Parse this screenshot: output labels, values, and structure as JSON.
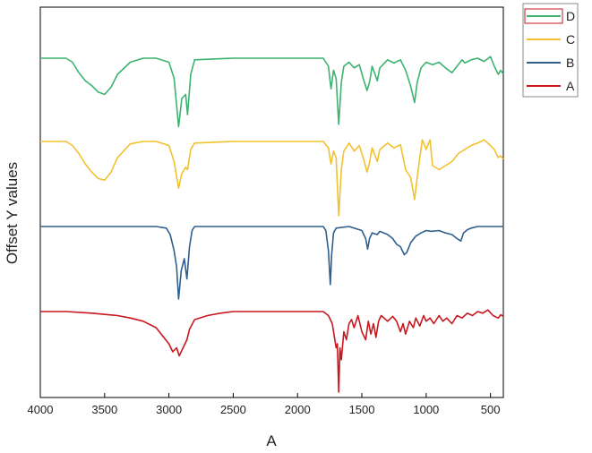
{
  "chart_data": {
    "type": "line",
    "title": "",
    "xlabel": "A",
    "ylabel": "Offset Y values",
    "xlim": [
      4000,
      400
    ],
    "x_reversed": true,
    "xticks": [
      4000,
      3500,
      3000,
      2500,
      2000,
      1500,
      1000,
      500
    ],
    "y_ticks_shown": false,
    "grid": false,
    "legend": {
      "placement": "top-right-outside",
      "entries": [
        "D",
        "C",
        "B",
        "A"
      ]
    },
    "series": [
      {
        "name": "D",
        "color": "#3cb371",
        "offset": 3,
        "points": [
          [
            4000,
            0
          ],
          [
            3800,
            0
          ],
          [
            3750,
            -0.05
          ],
          [
            3700,
            -0.18
          ],
          [
            3650,
            -0.28
          ],
          [
            3600,
            -0.34
          ],
          [
            3550,
            -0.42
          ],
          [
            3500,
            -0.45
          ],
          [
            3450,
            -0.36
          ],
          [
            3400,
            -0.2
          ],
          [
            3300,
            -0.05
          ],
          [
            3200,
            0
          ],
          [
            3100,
            0
          ],
          [
            3000,
            -0.05
          ],
          [
            2960,
            -0.25
          ],
          [
            2925,
            -0.85
          ],
          [
            2900,
            -0.5
          ],
          [
            2870,
            -0.45
          ],
          [
            2855,
            -0.7
          ],
          [
            2830,
            -0.2
          ],
          [
            2800,
            -0.02
          ],
          [
            2500,
            0
          ],
          [
            2200,
            0
          ],
          [
            1800,
            0
          ],
          [
            1760,
            -0.1
          ],
          [
            1740,
            -0.38
          ],
          [
            1720,
            -0.15
          ],
          [
            1700,
            -0.25
          ],
          [
            1680,
            -0.82
          ],
          [
            1660,
            -0.3
          ],
          [
            1640,
            -0.1
          ],
          [
            1600,
            -0.05
          ],
          [
            1560,
            -0.12
          ],
          [
            1520,
            -0.08
          ],
          [
            1490,
            -0.25
          ],
          [
            1460,
            -0.4
          ],
          [
            1440,
            -0.3
          ],
          [
            1420,
            -0.1
          ],
          [
            1380,
            -0.28
          ],
          [
            1360,
            -0.12
          ],
          [
            1300,
            -0.02
          ],
          [
            1250,
            -0.06
          ],
          [
            1200,
            -0.02
          ],
          [
            1160,
            -0.15
          ],
          [
            1120,
            -0.35
          ],
          [
            1090,
            -0.55
          ],
          [
            1070,
            -0.3
          ],
          [
            1040,
            -0.12
          ],
          [
            1000,
            -0.05
          ],
          [
            950,
            -0.08
          ],
          [
            900,
            -0.05
          ],
          [
            850,
            -0.12
          ],
          [
            800,
            -0.18
          ],
          [
            760,
            -0.1
          ],
          [
            720,
            -0.02
          ],
          [
            700,
            -0.06
          ],
          [
            650,
            -0.02
          ],
          [
            600,
            0
          ],
          [
            550,
            -0.04
          ],
          [
            500,
            0.02
          ],
          [
            470,
            -0.1
          ],
          [
            440,
            -0.2
          ],
          [
            420,
            -0.15
          ],
          [
            400,
            -0.2
          ]
        ]
      },
      {
        "name": "C",
        "color": "#f2c12e",
        "offset": 2,
        "points": [
          [
            4000,
            0
          ],
          [
            3800,
            0
          ],
          [
            3750,
            -0.05
          ],
          [
            3700,
            -0.15
          ],
          [
            3650,
            -0.28
          ],
          [
            3600,
            -0.38
          ],
          [
            3550,
            -0.46
          ],
          [
            3500,
            -0.48
          ],
          [
            3450,
            -0.38
          ],
          [
            3400,
            -0.2
          ],
          [
            3300,
            -0.03
          ],
          [
            3200,
            0
          ],
          [
            3100,
            0
          ],
          [
            3000,
            -0.05
          ],
          [
            2960,
            -0.25
          ],
          [
            2925,
            -0.58
          ],
          [
            2900,
            -0.4
          ],
          [
            2870,
            -0.32
          ],
          [
            2855,
            -0.35
          ],
          [
            2830,
            -0.1
          ],
          [
            2800,
            -0.02
          ],
          [
            2500,
            0
          ],
          [
            2200,
            0
          ],
          [
            1800,
            0
          ],
          [
            1760,
            -0.08
          ],
          [
            1740,
            -0.28
          ],
          [
            1720,
            -0.12
          ],
          [
            1700,
            -0.2
          ],
          [
            1680,
            -0.92
          ],
          [
            1660,
            -0.35
          ],
          [
            1640,
            -0.12
          ],
          [
            1600,
            -0.02
          ],
          [
            1560,
            -0.12
          ],
          [
            1520,
            -0.05
          ],
          [
            1490,
            -0.2
          ],
          [
            1460,
            -0.38
          ],
          [
            1440,
            -0.26
          ],
          [
            1420,
            -0.08
          ],
          [
            1380,
            -0.25
          ],
          [
            1360,
            -0.1
          ],
          [
            1300,
            -0.02
          ],
          [
            1250,
            -0.08
          ],
          [
            1200,
            -0.04
          ],
          [
            1160,
            -0.35
          ],
          [
            1120,
            -0.45
          ],
          [
            1090,
            -0.72
          ],
          [
            1070,
            -0.45
          ],
          [
            1050,
            -0.2
          ],
          [
            1030,
            0.02
          ],
          [
            1000,
            -0.1
          ],
          [
            970,
            0.02
          ],
          [
            950,
            -0.3
          ],
          [
            900,
            -0.35
          ],
          [
            850,
            -0.3
          ],
          [
            800,
            -0.25
          ],
          [
            750,
            -0.15
          ],
          [
            700,
            -0.1
          ],
          [
            650,
            -0.05
          ],
          [
            600,
            -0.02
          ],
          [
            550,
            0.02
          ],
          [
            500,
            -0.05
          ],
          [
            470,
            -0.1
          ],
          [
            440,
            -0.2
          ],
          [
            420,
            -0.18
          ],
          [
            400,
            -0.22
          ]
        ]
      },
      {
        "name": "B",
        "color": "#2e5f8e",
        "offset": 1,
        "points": [
          [
            4000,
            0
          ],
          [
            3100,
            0
          ],
          [
            3020,
            -0.02
          ],
          [
            2990,
            -0.1
          ],
          [
            2960,
            -0.3
          ],
          [
            2940,
            -0.5
          ],
          [
            2925,
            -0.9
          ],
          [
            2905,
            -0.55
          ],
          [
            2880,
            -0.4
          ],
          [
            2860,
            -0.65
          ],
          [
            2840,
            -0.25
          ],
          [
            2820,
            -0.05
          ],
          [
            2800,
            0
          ],
          [
            2500,
            0
          ],
          [
            2200,
            0
          ],
          [
            1800,
            0
          ],
          [
            1780,
            -0.05
          ],
          [
            1760,
            -0.3
          ],
          [
            1745,
            -0.72
          ],
          [
            1735,
            -0.35
          ],
          [
            1720,
            -0.08
          ],
          [
            1700,
            -0.02
          ],
          [
            1600,
            0
          ],
          [
            1500,
            -0.05
          ],
          [
            1470,
            -0.15
          ],
          [
            1455,
            -0.28
          ],
          [
            1440,
            -0.15
          ],
          [
            1420,
            -0.08
          ],
          [
            1380,
            -0.1
          ],
          [
            1360,
            -0.06
          ],
          [
            1300,
            -0.1
          ],
          [
            1260,
            -0.15
          ],
          [
            1230,
            -0.22
          ],
          [
            1200,
            -0.25
          ],
          [
            1170,
            -0.35
          ],
          [
            1150,
            -0.32
          ],
          [
            1120,
            -0.2
          ],
          [
            1080,
            -0.12
          ],
          [
            1040,
            -0.08
          ],
          [
            1000,
            -0.05
          ],
          [
            960,
            -0.06
          ],
          [
            900,
            -0.05
          ],
          [
            850,
            -0.08
          ],
          [
            800,
            -0.1
          ],
          [
            760,
            -0.15
          ],
          [
            730,
            -0.18
          ],
          [
            710,
            -0.08
          ],
          [
            680,
            -0.04
          ],
          [
            650,
            -0.02
          ],
          [
            600,
            0
          ],
          [
            500,
            0
          ],
          [
            400,
            0
          ]
        ]
      },
      {
        "name": "A",
        "color": "#c8171e",
        "offset": 0,
        "points": [
          [
            4000,
            0
          ],
          [
            3800,
            0
          ],
          [
            3600,
            -0.02
          ],
          [
            3400,
            -0.05
          ],
          [
            3300,
            -0.08
          ],
          [
            3200,
            -0.12
          ],
          [
            3100,
            -0.2
          ],
          [
            3050,
            -0.3
          ],
          [
            3000,
            -0.4
          ],
          [
            2970,
            -0.5
          ],
          [
            2940,
            -0.45
          ],
          [
            2920,
            -0.55
          ],
          [
            2890,
            -0.45
          ],
          [
            2860,
            -0.35
          ],
          [
            2840,
            -0.22
          ],
          [
            2800,
            -0.1
          ],
          [
            2700,
            -0.05
          ],
          [
            2600,
            -0.02
          ],
          [
            2500,
            0
          ],
          [
            2200,
            0
          ],
          [
            1800,
            0
          ],
          [
            1760,
            -0.05
          ],
          [
            1730,
            -0.15
          ],
          [
            1700,
            -0.45
          ],
          [
            1690,
            -0.4
          ],
          [
            1680,
            -1.0
          ],
          [
            1670,
            -0.45
          ],
          [
            1660,
            -0.6
          ],
          [
            1640,
            -0.25
          ],
          [
            1620,
            -0.35
          ],
          [
            1600,
            -0.15
          ],
          [
            1580,
            -0.1
          ],
          [
            1560,
            -0.2
          ],
          [
            1530,
            -0.05
          ],
          [
            1500,
            -0.25
          ],
          [
            1470,
            -0.35
          ],
          [
            1450,
            -0.12
          ],
          [
            1430,
            -0.28
          ],
          [
            1410,
            -0.15
          ],
          [
            1390,
            -0.32
          ],
          [
            1370,
            -0.12
          ],
          [
            1350,
            -0.05
          ],
          [
            1300,
            -0.12
          ],
          [
            1260,
            -0.06
          ],
          [
            1230,
            -0.12
          ],
          [
            1200,
            -0.25
          ],
          [
            1180,
            -0.15
          ],
          [
            1160,
            -0.28
          ],
          [
            1130,
            -0.12
          ],
          [
            1100,
            -0.2
          ],
          [
            1080,
            -0.08
          ],
          [
            1050,
            -0.18
          ],
          [
            1020,
            -0.05
          ],
          [
            1000,
            -0.12
          ],
          [
            970,
            -0.08
          ],
          [
            940,
            -0.15
          ],
          [
            900,
            -0.05
          ],
          [
            870,
            -0.12
          ],
          [
            840,
            -0.08
          ],
          [
            800,
            -0.15
          ],
          [
            760,
            -0.05
          ],
          [
            720,
            -0.08
          ],
          [
            680,
            -0.02
          ],
          [
            640,
            -0.05
          ],
          [
            600,
            0
          ],
          [
            560,
            -0.02
          ],
          [
            520,
            0.02
          ],
          [
            480,
            -0.05
          ],
          [
            440,
            -0.08
          ],
          [
            420,
            -0.04
          ],
          [
            400,
            -0.06
          ]
        ]
      }
    ]
  }
}
